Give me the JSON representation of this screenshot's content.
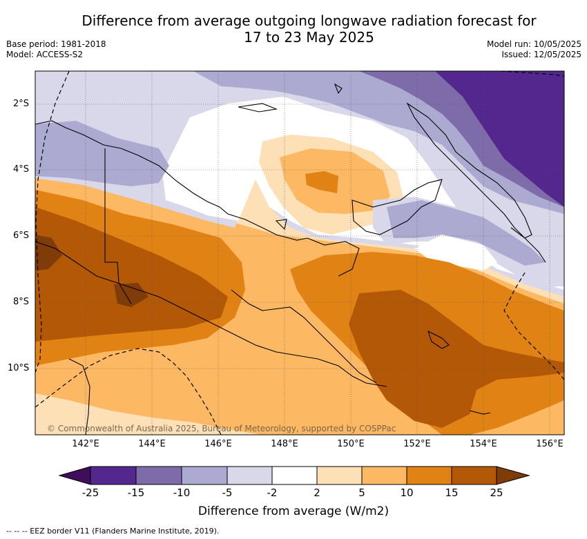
{
  "title_line1": "Difference from average outgoing longwave radiation forecast for",
  "title_line2": "17 to 23 May 2025",
  "base_period": "Base period: 1981-2018",
  "model": "Model: ACCESS-S2",
  "model_run": "Model run: 10/05/2025",
  "issued": "Issued: 12/05/2025",
  "lat_labels": [
    "2°S",
    "4°S",
    "6°S",
    "8°S",
    "10°S"
  ],
  "lon_labels": [
    "142°E",
    "144°E",
    "146°E",
    "148°E",
    "150°E",
    "152°E",
    "154°E",
    "156°E"
  ],
  "copyright": "© Commonwealth of Australia 2025, Bureau of Meteorology, supported by COSPPac",
  "colorbar": {
    "ticks": [
      "-25",
      "-15",
      "-10",
      "-5",
      "-2",
      "2",
      "5",
      "10",
      "15",
      "25"
    ],
    "colors": [
      "#3f0d5a",
      "#54278f",
      "#7d6baa",
      "#adaad1",
      "#d8d8ea",
      "#ffffff",
      "#fee0b6",
      "#fdb863",
      "#e08214",
      "#b35806",
      "#7f3b08"
    ],
    "label": "Difference from average (W/m2)"
  },
  "footer": "--  --  -- EEZ border V11 (Flanders Marine Institute, 2019)."
}
